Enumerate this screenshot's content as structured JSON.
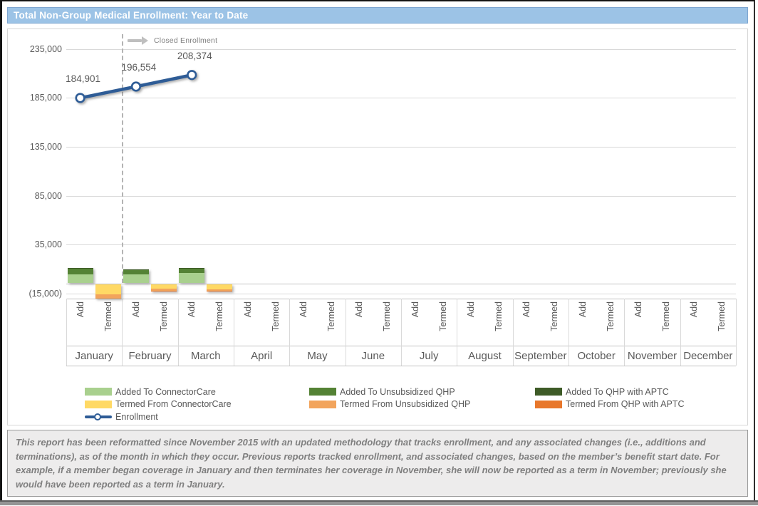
{
  "header": {
    "title": "Total Non-Group Medical Enrollment: Year to Date"
  },
  "annotation": {
    "label": "Closed Enrollment"
  },
  "chart_data": {
    "type": "combo-stacked-bar-line",
    "title": "Total Non-Group Medical Enrollment: Year to Date",
    "categories": [
      "January",
      "February",
      "March",
      "April",
      "May",
      "June",
      "July",
      "August",
      "September",
      "October",
      "November",
      "December"
    ],
    "sub_categories": [
      "Add",
      "Termed"
    ],
    "y_axis": {
      "tick_labels": [
        "235,000",
        "185,000",
        "135,000",
        "85,000",
        "35,000",
        "(15,000)"
      ],
      "tick_values": [
        235000,
        185000,
        135000,
        85000,
        35000,
        -15000
      ],
      "min": -20000,
      "max": 250000,
      "gridlines": true
    },
    "bar_series": [
      {
        "name": "Added To ConnectorCare",
        "stack": "Add",
        "color": "#A9D08E",
        "values": [
          9000,
          8900,
          10200,
          null,
          null,
          null,
          null,
          null,
          null,
          null,
          null,
          null
        ]
      },
      {
        "name": "Added To Unsubsidized QHP",
        "stack": "Add",
        "color": "#548235",
        "values": [
          5900,
          4200,
          4300,
          null,
          null,
          null,
          null,
          null,
          null,
          null,
          null,
          null
        ]
      },
      {
        "name": "Added To QHP with APTC",
        "stack": "Add",
        "color": "#3E5B27",
        "values": [
          700,
          500,
          600,
          null,
          null,
          null,
          null,
          null,
          null,
          null,
          null,
          null
        ]
      },
      {
        "name": "Termed From ConnectorCare",
        "stack": "Termed",
        "color": "#FFD965",
        "values": [
          -10500,
          -4500,
          -4800,
          null,
          null,
          null,
          null,
          null,
          null,
          null,
          null,
          null
        ]
      },
      {
        "name": "Termed From Unsubsidized QHP",
        "stack": "Termed",
        "color": "#F2A45C",
        "values": [
          -4000,
          -1700,
          -1500,
          null,
          null,
          null,
          null,
          null,
          null,
          null,
          null,
          null
        ]
      },
      {
        "name": "Termed From QHP with APTC",
        "stack": "Termed",
        "color": "#E8772B",
        "values": [
          -1800,
          -400,
          -400,
          null,
          null,
          null,
          null,
          null,
          null,
          null,
          null,
          null
        ]
      }
    ],
    "line_series": {
      "name": "Enrollment",
      "color": "#2E5C96",
      "plotted_at": "Add",
      "values": [
        184901,
        196554,
        208374,
        null,
        null,
        null,
        null,
        null,
        null,
        null,
        null,
        null
      ],
      "data_labels": [
        "184,901",
        "196,554",
        "208,374"
      ]
    },
    "divider_after_month": "January",
    "legend_position": "bottom"
  },
  "footnote": {
    "text": "This report has been reformatted since November 2015 with an updated methodology that tracks enrollment, and any associated changes (i.e., additions and terminations), as of the month in which they occur.  Previous reports tracked enrollment, and associated changes, based on the member’s benefit start date.  For example, if a member began coverage in January and then terminates her coverage in November, she will now be reported as a term in November; previously she would have been reported as a term in January."
  }
}
